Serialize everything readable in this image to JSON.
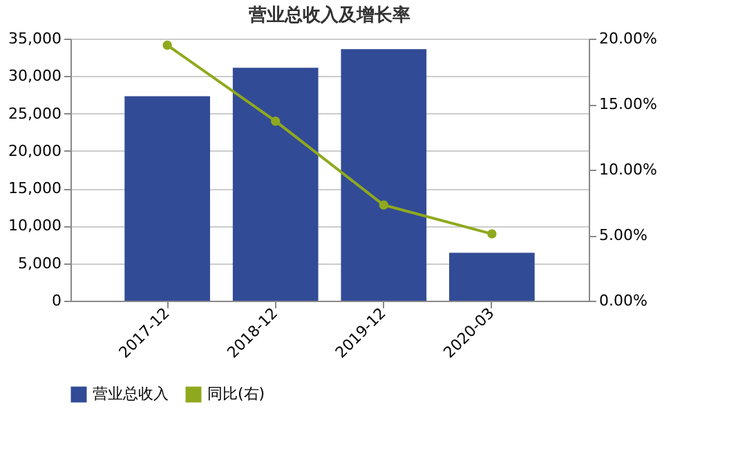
{
  "chart_data": {
    "type": "bar",
    "title": "营业总收入及增长率",
    "categories": [
      "2017-12",
      "2018-12",
      "2019-12",
      "2020-03"
    ],
    "series": [
      {
        "name": "营业总收入",
        "color": "#324b96",
        "values": [
          27300,
          31100,
          33600,
          6400
        ]
      },
      {
        "name": "同比(右)",
        "type": "line",
        "axis": "y2",
        "color": "#8fa91e",
        "values": [
          19.5,
          13.7,
          7.3,
          5.1
        ]
      }
    ],
    "ylim": [
      0,
      35000
    ],
    "yticks": [
      0,
      {
        "value": 5000,
        "label": "5,000"
      },
      {
        "value": 10000,
        "label": "10,000"
      },
      {
        "value": 15000,
        "label": "15,000"
      },
      {
        "value": 20000,
        "label": "20,000"
      },
      {
        "value": 25000,
        "label": "25,000"
      },
      {
        "value": 30000,
        "label": "30,000"
      },
      {
        "value": 35000,
        "label": "35,000"
      }
    ],
    "y2lim": [
      0,
      20
    ],
    "y2ticks": [
      {
        "value": 0,
        "label": "0.00%"
      },
      {
        "value": 5,
        "label": "5.00%"
      },
      {
        "value": 10,
        "label": "10.00%"
      },
      {
        "value": 15,
        "label": "15.00%"
      },
      {
        "value": 20,
        "label": "20.00%"
      }
    ],
    "grid": "y",
    "legend": "bottom",
    "marker": "circle"
  }
}
